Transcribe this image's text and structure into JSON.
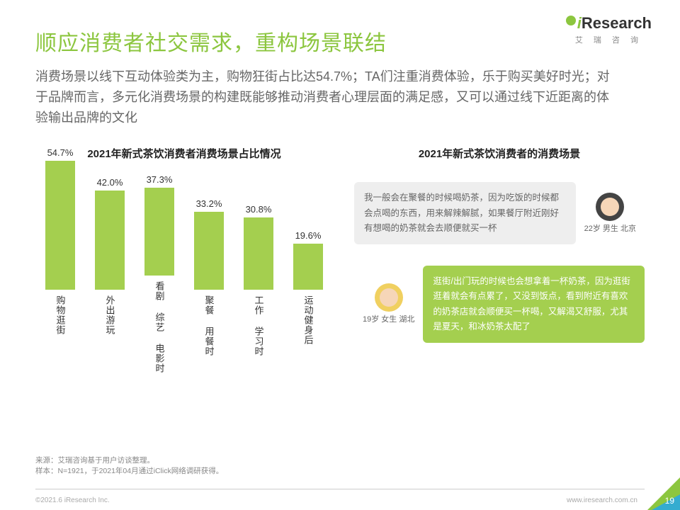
{
  "logo": {
    "brand_i": "i",
    "brand_rest": "Research",
    "sub": "艾 瑞 咨 询"
  },
  "title": "顺应消费者社交需求，重构场景联结",
  "subtitle": "消费场景以线下互动体验类为主，购物狂街占比达54.7%；TA们注重消费体验，乐于购买美好时光；对于品牌而言，多元化消费场景的构建既能够推动消费者心理层面的满足感，又可以通过线下近距离的体验输出品牌的文化",
  "chart": {
    "title": "2021年新式茶饮消费者消费场景占比情况",
    "type": "bar",
    "ylim_max": 60,
    "bar_color": "#a4cf4f",
    "label_fontsize": 13,
    "categories": [
      "购物逛街",
      "外出游玩",
      "看剧 综艺 电影时",
      "聚餐 用餐时",
      "工作 学习时",
      "运动健身后"
    ],
    "values": [
      54.7,
      42.0,
      37.3,
      33.2,
      30.8,
      19.6
    ],
    "value_labels": [
      "54.7%",
      "42.0%",
      "37.3%",
      "33.2%",
      "30.8%",
      "19.6%"
    ]
  },
  "right_title": "2021年新式茶饮消费者的消费场景",
  "personas": [
    {
      "text": "我一般会在聚餐的时候喝奶茶，因为吃饭的时候都会点喝的东西，用来解辣解腻，如果餐厅附近刚好有想喝的奶茶就会去顺便就买一杯",
      "label": "22岁 男生\n北京",
      "style": "gray",
      "avatar": "m"
    },
    {
      "text": "逛街/出门玩的时候也会想拿着一杯奶茶，因为逛街逛着就会有点累了，又没到饭点，看到附近有喜欢的奶茶店就会顺便买一杯喝，又解渴又舒服，尤其是夏天，和冰奶茶太配了",
      "label": "19岁 女生\n湖北",
      "style": "green",
      "avatar": "f"
    }
  ],
  "footnotes": [
    "来源：艾瑞咨询基于用户访谈整理。",
    "样本：N=1921，于2021年04月通过iClick网络调研获得。"
  ],
  "copyright": "©2021.6 iResearch Inc.",
  "footer_url": "www.iresearch.com.cn",
  "page": "19"
}
